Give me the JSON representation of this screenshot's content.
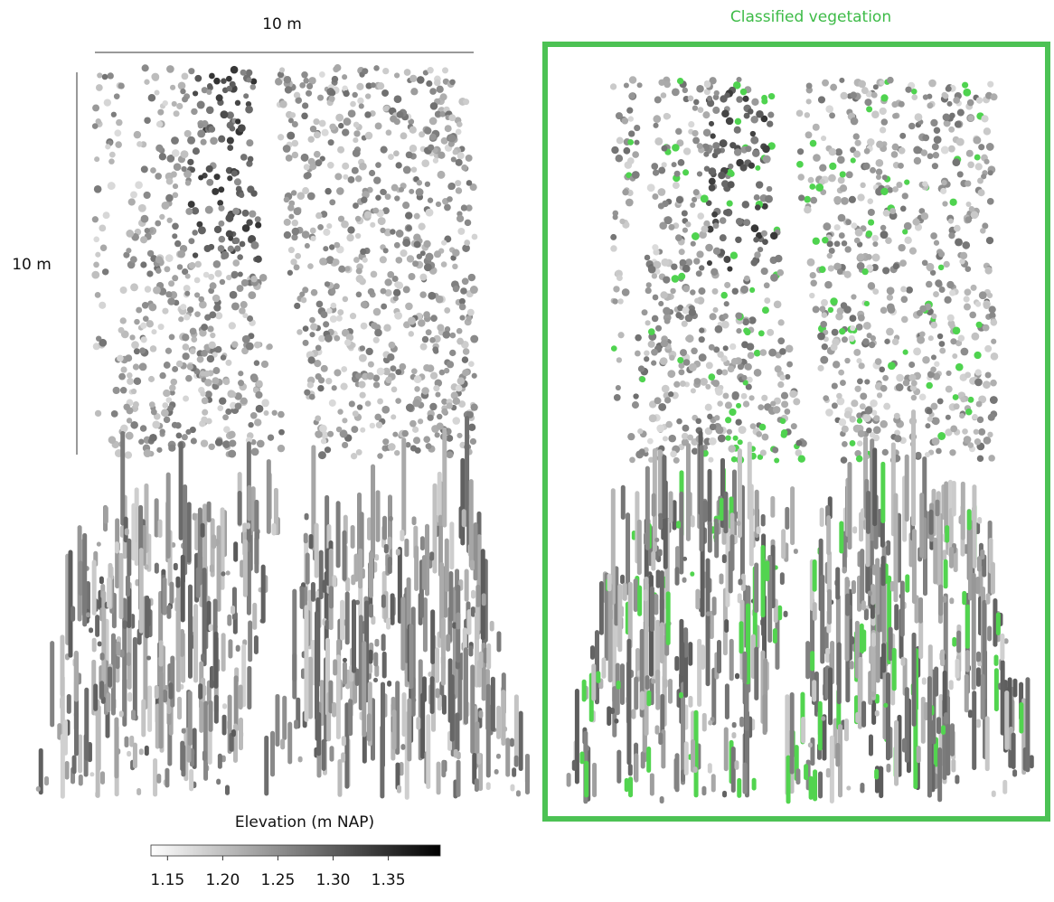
{
  "scale_bar_x": "10 m",
  "scale_bar_y": "10 m",
  "panel_title": "Classified vegetation",
  "colorbar": {
    "label": "Elevation (m NAP)",
    "range": [
      1.135,
      1.397
    ],
    "ticks": [
      1.15,
      {
        "value": 1.2,
        "label": "1.20"
      },
      1.25,
      {
        "value": 1.3,
        "label": "1.30"
      },
      1.35
    ]
  }
}
